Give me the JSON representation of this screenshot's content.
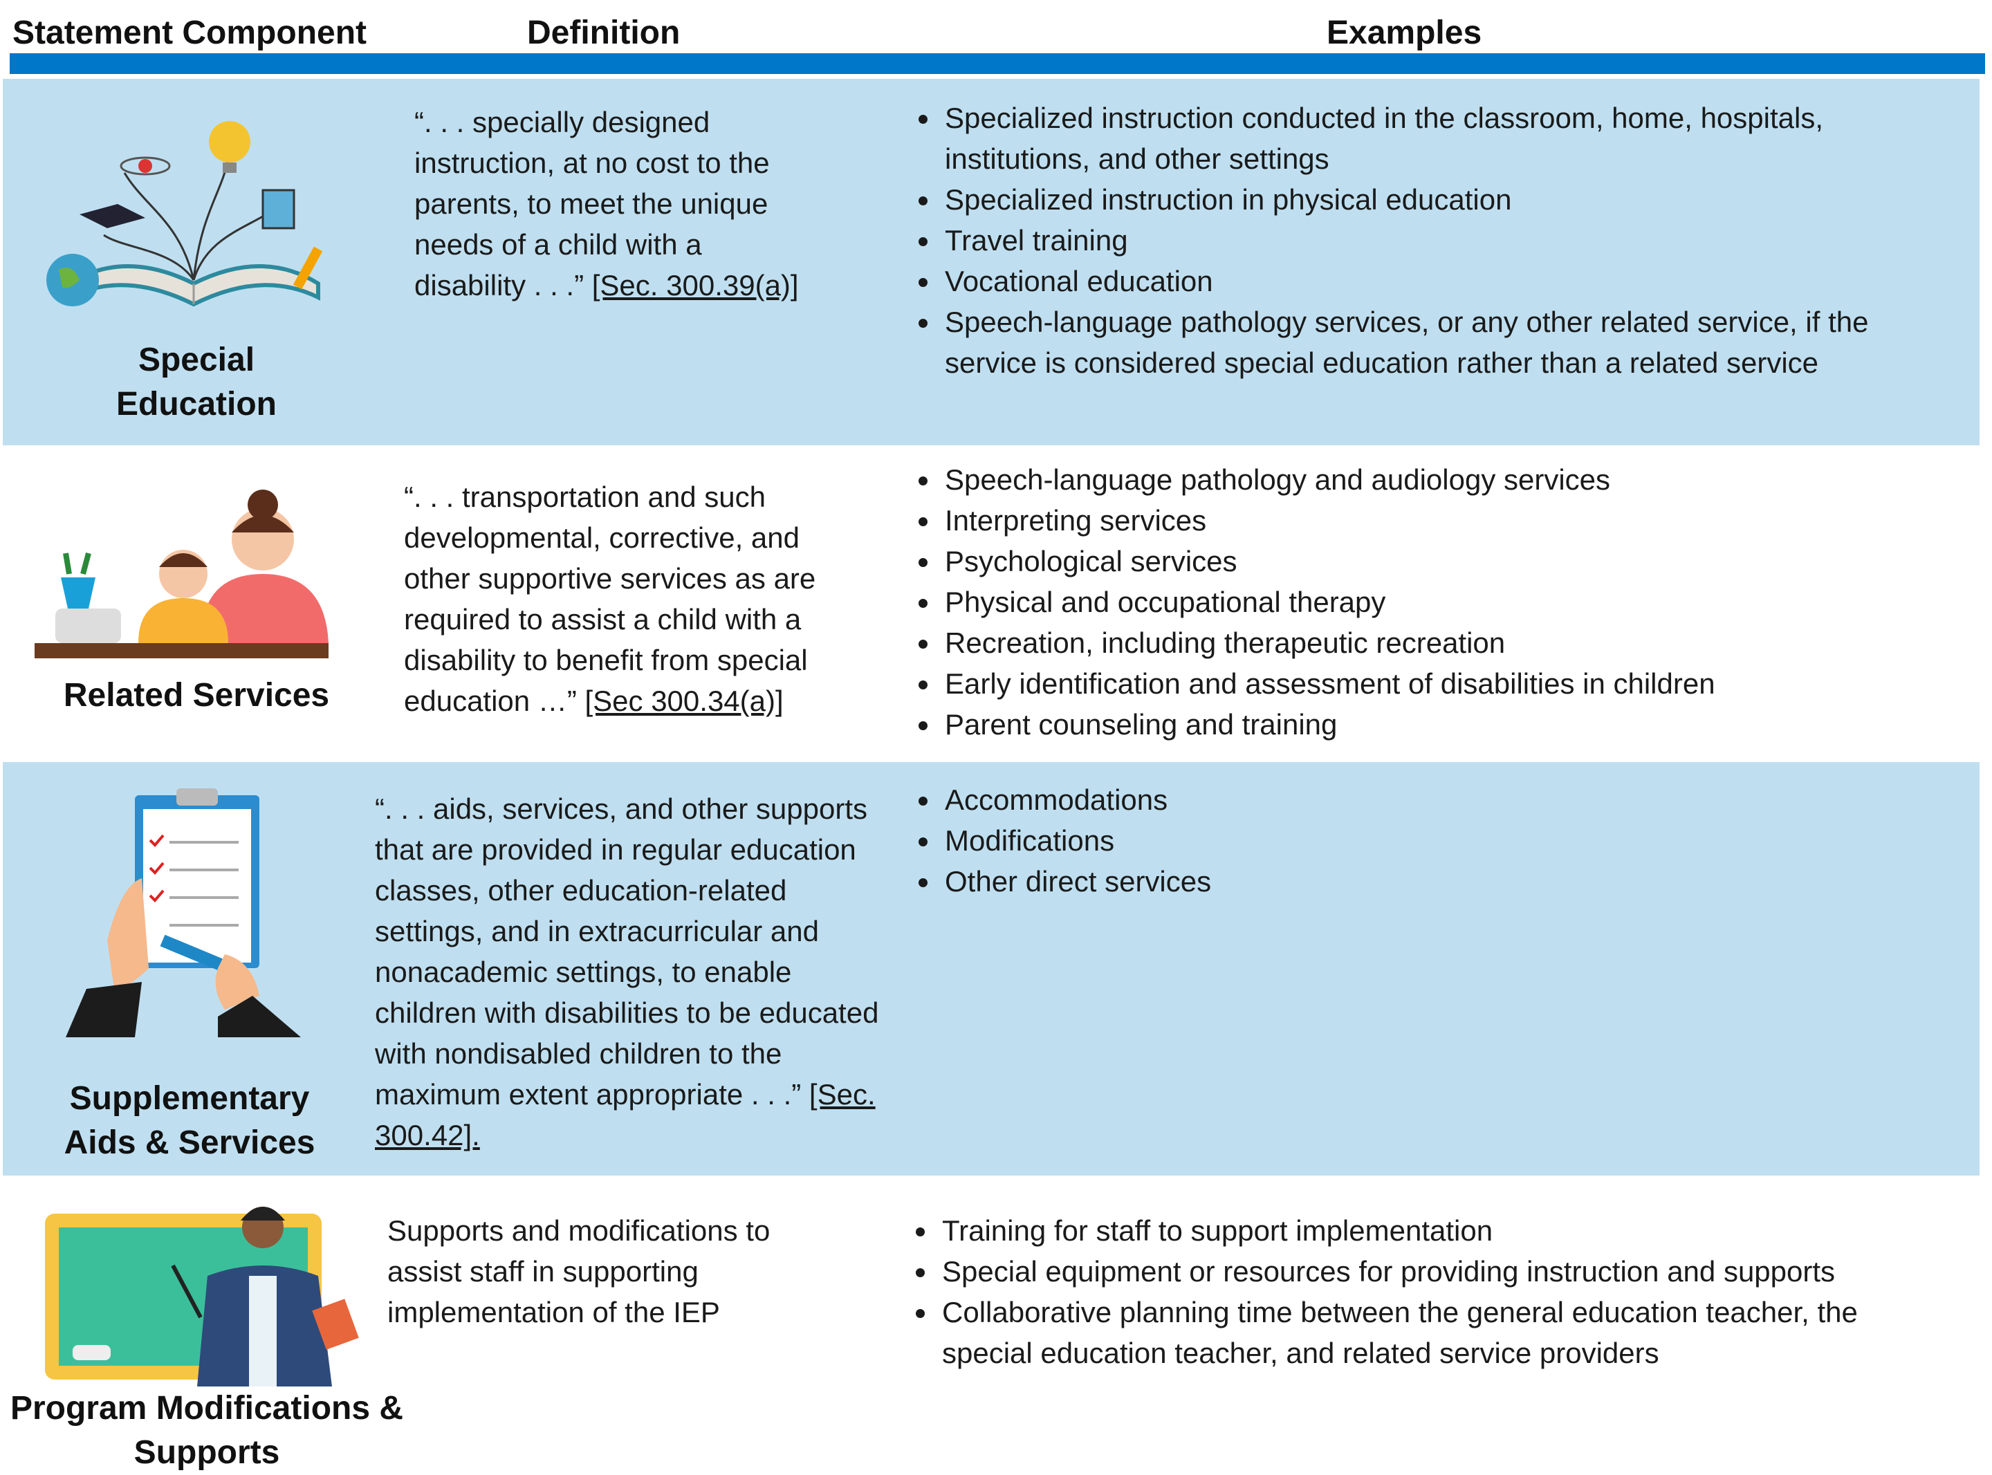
{
  "table": {
    "headers": [
      "Statement Component",
      "Definition",
      "Examples"
    ],
    "rows": [
      {
        "component": "Special Education",
        "definition": "“. . . specially designed instruction, at no cost to the parents, to meet the unique needs of a child with a disability . . .”",
        "citation": "[Sec. 300.39(a)]",
        "examples": [
          "Specialized instruction conducted in the classroom, home, hospitals, institutions, and other settings",
          "Specialized instruction in physical education",
          "Travel training",
          "Vocational education",
          "Speech-language pathology services, or any other related service, if the service is considered special education rather than a related service"
        ]
      },
      {
        "component": "Related Services",
        "definition": "“. . . transportation and such developmental, corrective, and other supportive services as are required to assist a child with a disability to benefit from special education …”",
        "citation": "[Sec 300.34(a)]",
        "examples": [
          "Speech-language pathology and audiology services",
          "Interpreting services",
          "Psychological services",
          "Physical and occupational therapy",
          "Recreation, including therapeutic recreation",
          "Early identification and assessment of disabilities in children",
          "Parent counseling and training"
        ]
      },
      {
        "component": "Supplementary Aids & Services",
        "definition": "“. . . aids, services, and other supports that are provided in regular education classes, other education-related settings, and in extracurricular and nonacademic settings, to enable children with disabilities to be educated with nondisabled children to the maximum extent appropriate . . .”",
        "citation": "[Sec. 300.42].",
        "examples": [
          "Accommodations",
          "Modifications",
          "Other direct services"
        ]
      },
      {
        "component": "Program Modifications & Supports",
        "definition": "Supports and modifications to assist staff in supporting implementation of the IEP",
        "examples": [
          "Training for staff to support implementation",
          "Special equipment or resources for providing instruction and supports",
          "Collaborative planning time between the general education teacher, the special education teacher, and related service providers"
        ]
      }
    ]
  }
}
